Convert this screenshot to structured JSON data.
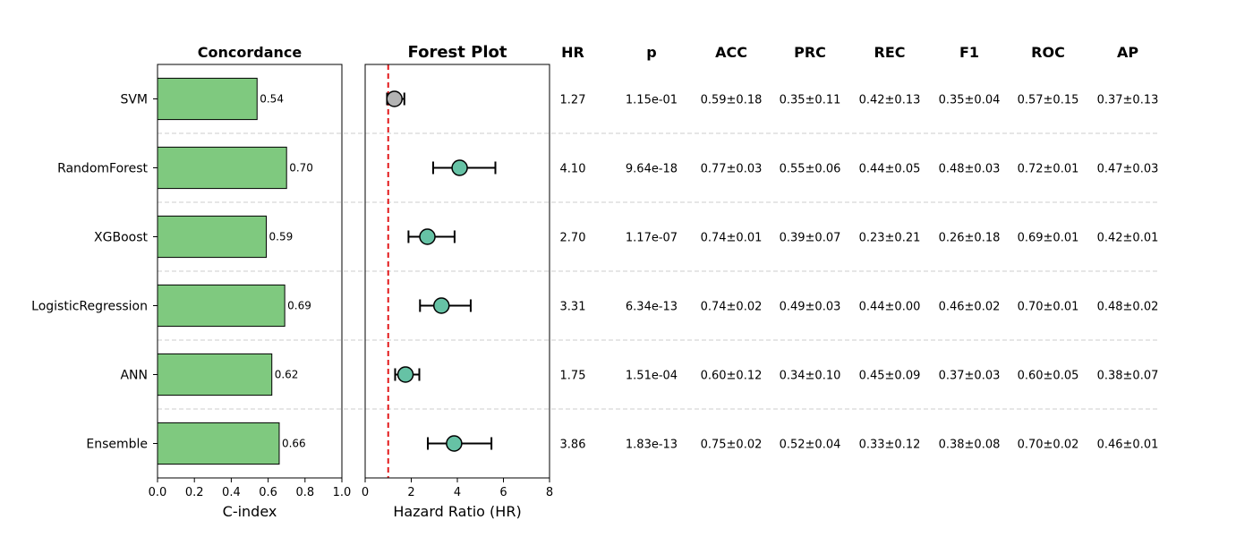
{
  "chart_data": [
    {
      "type": "bar",
      "orientation": "horizontal",
      "title": "Concordance",
      "xlabel": "C-index",
      "ylabel": "",
      "xlim": [
        0,
        1.0
      ],
      "xticks": [
        "0.0",
        "0.2",
        "0.4",
        "0.6",
        "0.8",
        "1.0"
      ],
      "categories": [
        "SVM",
        "RandomForest",
        "XGBoost",
        "LogisticRegression",
        "ANN",
        "Ensemble"
      ],
      "values": [
        0.54,
        0.7,
        0.59,
        0.69,
        0.62,
        0.66
      ],
      "value_labels": [
        "0.54",
        "0.70",
        "0.59",
        "0.69",
        "0.62",
        "0.66"
      ],
      "bar_color": "#7fc97f"
    },
    {
      "type": "scatter",
      "subtype": "forest",
      "title": "Forest Plot",
      "xlabel": "Hazard Ratio (HR)",
      "ylabel": "",
      "xlim": [
        0,
        8
      ],
      "xticks": [
        "0",
        "2",
        "4",
        "6",
        "8"
      ],
      "reference_line": 1,
      "reference_color": "#e31a1c",
      "categories": [
        "SVM",
        "RandomForest",
        "XGBoost",
        "LogisticRegression",
        "ANN",
        "Ensemble"
      ],
      "hr": [
        1.27,
        4.1,
        2.7,
        3.31,
        1.75,
        3.86
      ],
      "ci_low": [
        0.95,
        2.95,
        1.88,
        2.38,
        1.3,
        2.72
      ],
      "ci_high": [
        1.7,
        5.65,
        3.88,
        4.58,
        2.35,
        5.48
      ],
      "significant": [
        false,
        true,
        true,
        true,
        true,
        true
      ],
      "color_significant": "#66c2a5",
      "color_nonsignificant": "#b3b3b3"
    },
    {
      "type": "table",
      "columns": [
        "HR",
        "p",
        "ACC",
        "PRC",
        "REC",
        "F1",
        "ROC",
        "AP"
      ],
      "rows": [
        [
          "1.27",
          "1.15e-01",
          "0.59±0.18",
          "0.35±0.11",
          "0.42±0.13",
          "0.35±0.04",
          "0.57±0.15",
          "0.37±0.13"
        ],
        [
          "4.10",
          "9.64e-18",
          "0.77±0.03",
          "0.55±0.06",
          "0.44±0.05",
          "0.48±0.03",
          "0.72±0.01",
          "0.47±0.03"
        ],
        [
          "2.70",
          "1.17e-07",
          "0.74±0.01",
          "0.39±0.07",
          "0.23±0.21",
          "0.26±0.18",
          "0.69±0.01",
          "0.42±0.01"
        ],
        [
          "3.31",
          "6.34e-13",
          "0.74±0.02",
          "0.49±0.03",
          "0.44±0.00",
          "0.46±0.02",
          "0.70±0.01",
          "0.48±0.02"
        ],
        [
          "1.75",
          "1.51e-04",
          "0.60±0.12",
          "0.34±0.10",
          "0.45±0.09",
          "0.37±0.03",
          "0.60±0.05",
          "0.38±0.07"
        ],
        [
          "3.86",
          "1.83e-13",
          "0.75±0.02",
          "0.52±0.04",
          "0.33±0.12",
          "0.38±0.08",
          "0.70±0.02",
          "0.46±0.01"
        ]
      ]
    }
  ]
}
